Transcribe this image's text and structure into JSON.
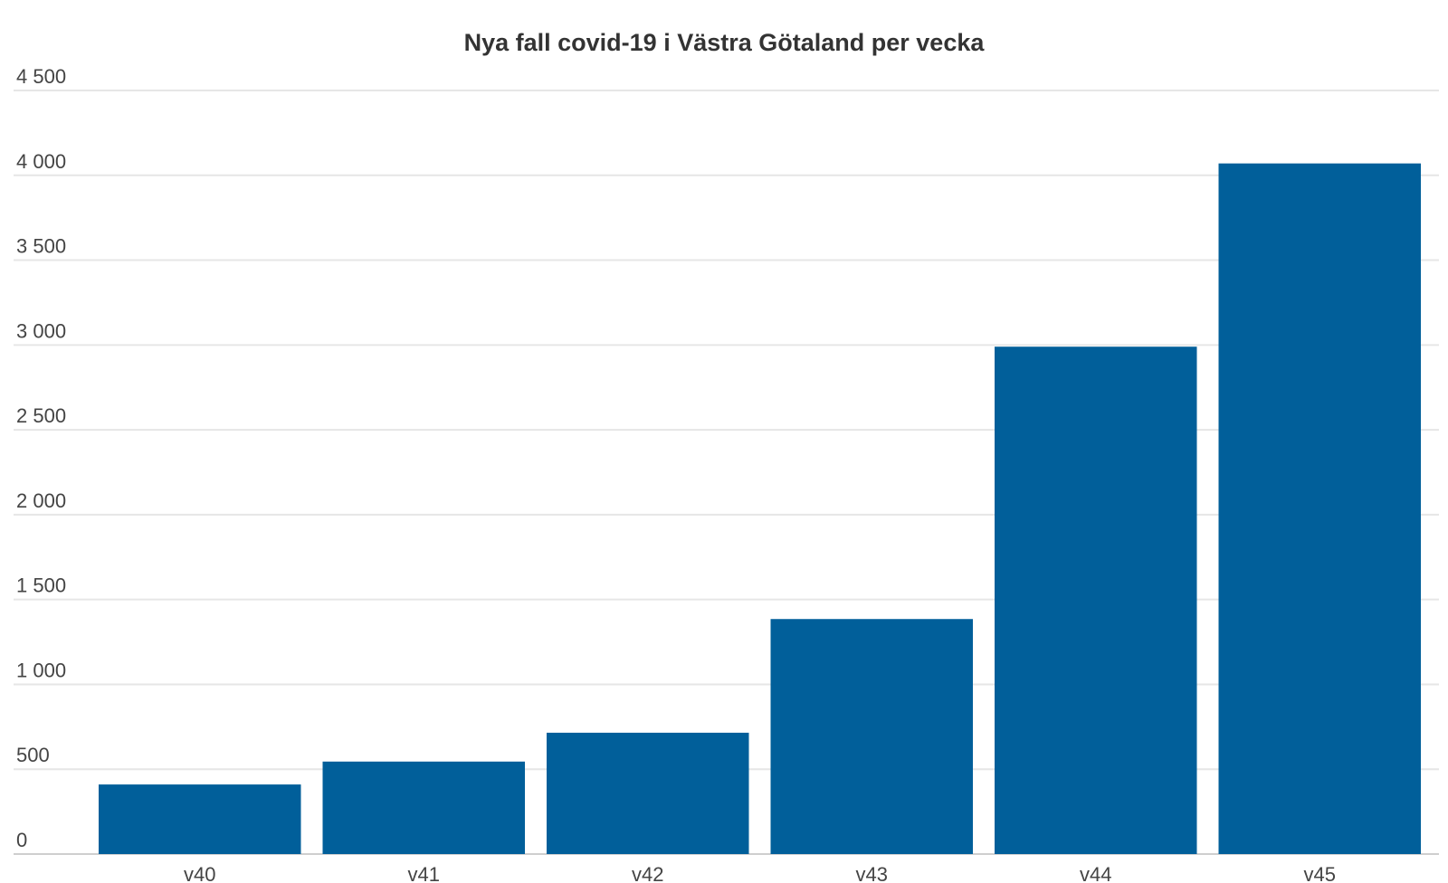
{
  "chart_data": {
    "type": "bar",
    "title": "Nya fall covid-19 i Västra Götaland per vecka",
    "xlabel": "",
    "ylabel": "",
    "categories": [
      "v40",
      "v41",
      "v42",
      "v43",
      "v44",
      "v45"
    ],
    "values": [
      410,
      545,
      715,
      1385,
      2990,
      4070
    ],
    "ylim": [
      0,
      4500
    ],
    "yticks": [
      0,
      500,
      1000,
      1500,
      2000,
      2500,
      3000,
      3500,
      4000,
      4500
    ],
    "ytick_labels": [
      "0",
      "500",
      "1 000",
      "1 500",
      "2 000",
      "2 500",
      "3 000",
      "3 500",
      "4 000",
      "4 500"
    ],
    "grid": true,
    "legend": "none",
    "colors": {
      "bar": "#015f9a",
      "grid": "#e6e6e6",
      "baseline": "#cfcfcf"
    }
  }
}
